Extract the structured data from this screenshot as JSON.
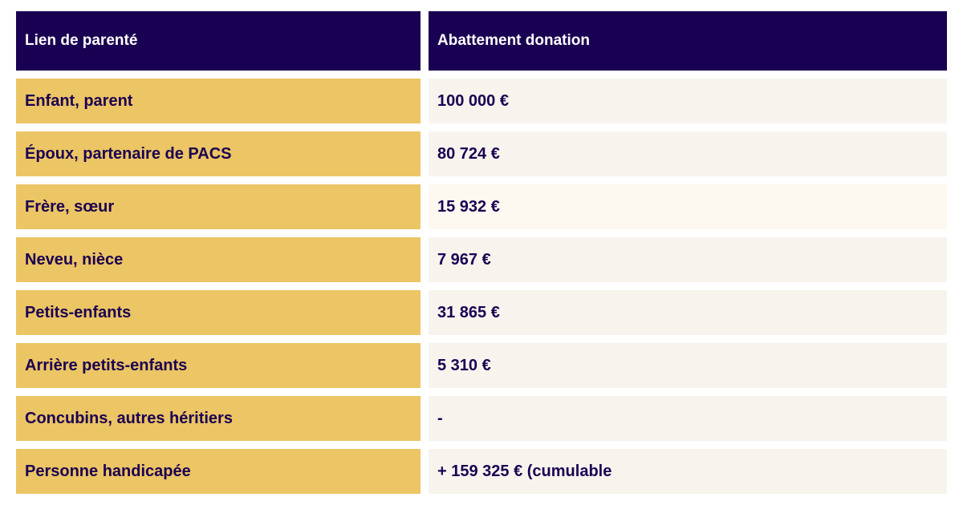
{
  "header": {
    "col1": "Lien de parenté",
    "col2": "Abattement donation"
  },
  "rows": [
    {
      "relation": "Enfant, parent",
      "amount": "100 000 €"
    },
    {
      "relation": "Époux, partenaire de PACS",
      "amount": "80 724 €"
    },
    {
      "relation": "Frère, sœur",
      "amount": "15 932 €"
    },
    {
      "relation": "Neveu, nièce",
      "amount": "7 967 €"
    },
    {
      "relation": "Petits-enfants",
      "amount": "31 865 €"
    },
    {
      "relation": "Arrière petits-enfants",
      "amount": "5 310 €"
    },
    {
      "relation": "Concubins, autres héritiers",
      "amount": "-"
    },
    {
      "relation": "Personne handicapée",
      "amount": "+ 159 325 € (cumulable"
    }
  ],
  "colors": {
    "header_bg": "#1a0052",
    "label_bg": "#ecc564",
    "value_bg": "#f7f4ee",
    "text": "#1a0052"
  }
}
